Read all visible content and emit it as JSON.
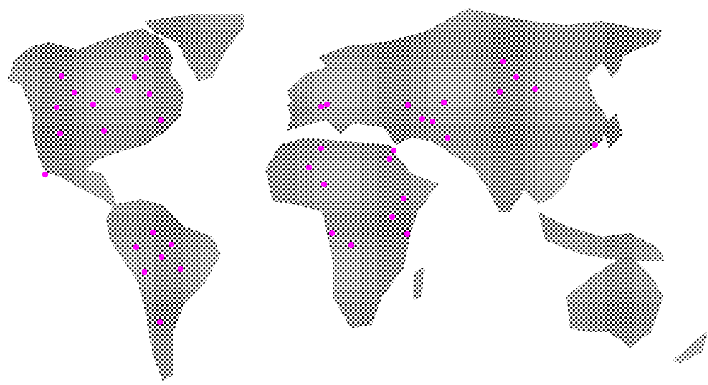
{
  "map": {
    "style": "dotted-world-map",
    "land_dot_color": "#000000",
    "background_color": "#ffffff",
    "marker_color": "#ff00ff",
    "regions": [
      "north-america",
      "greenland",
      "south-america",
      "europe-asia",
      "africa",
      "madagascar",
      "japan",
      "southeast-asia-islands",
      "australia",
      "new-zealand",
      "british-isles"
    ],
    "marker_groups": [
      {
        "region": "north-america",
        "count": 12
      },
      {
        "region": "south-america",
        "count": 7
      },
      {
        "region": "europe-middle-east-africa",
        "count": 17
      },
      {
        "region": "asia",
        "count": 5
      }
    ]
  }
}
